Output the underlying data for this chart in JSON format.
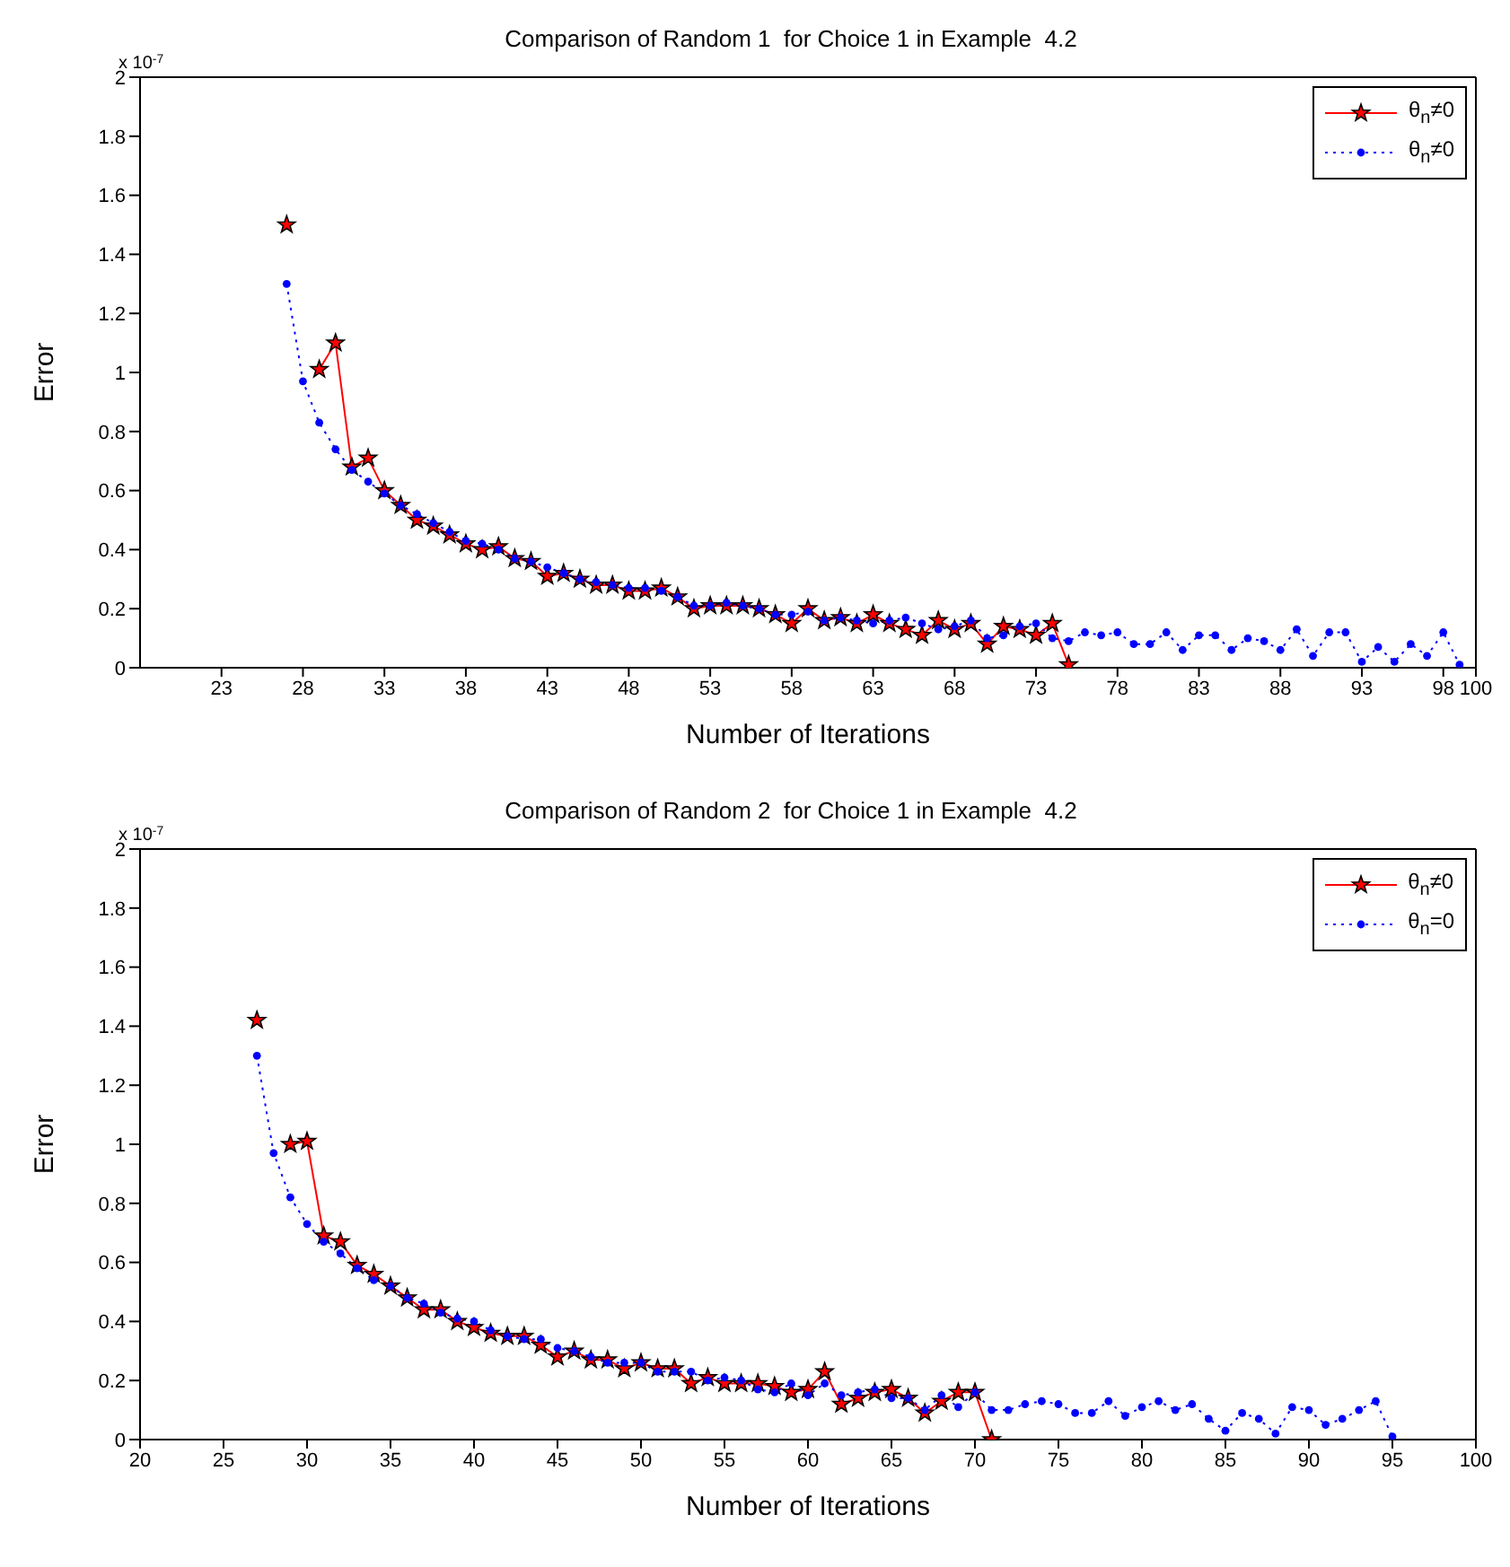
{
  "chart_data": [
    {
      "type": "line",
      "title": "Comparison of Random 1  for Choice 1 in Example  4.2",
      "xlabel": "Number of Iterations",
      "ylabel": "Error",
      "annotations": [
        "x 10$^{-7}$"
      ],
      "xlim": [
        18,
        100
      ],
      "xticks": [
        23,
        28,
        33,
        38,
        43,
        48,
        53,
        58,
        63,
        68,
        73,
        78,
        83,
        88,
        93,
        98,
        100
      ],
      "ylim": [
        0,
        2
      ],
      "yticks": [
        0,
        0.2,
        0.4,
        0.6,
        0.8,
        1,
        1.2,
        1.4,
        1.6,
        1.8,
        2
      ],
      "legend": "top right",
      "series": [
        {
          "name": "θ$_{n}$≠0",
          "color": "#ff0000",
          "marker": "star",
          "line_style": "solid",
          "x": [
            27,
            28,
            29,
            30,
            31,
            32,
            33,
            34,
            35,
            36,
            37,
            38,
            39,
            40,
            41,
            42,
            43,
            44,
            45,
            46,
            47,
            48,
            49,
            50,
            51,
            52,
            53,
            54,
            55,
            56,
            57,
            58,
            59,
            60,
            61,
            62,
            63,
            64,
            65,
            66,
            67,
            68,
            69,
            70,
            71,
            72,
            73,
            74,
            75
          ],
          "values": [
            1.5,
            null,
            1.01,
            1.1,
            0.68,
            0.71,
            0.6,
            0.55,
            0.5,
            0.48,
            0.45,
            0.42,
            0.4,
            0.41,
            0.37,
            0.36,
            0.31,
            0.32,
            0.3,
            0.28,
            0.28,
            0.26,
            0.26,
            0.27,
            0.24,
            0.2,
            0.21,
            0.21,
            0.21,
            0.2,
            0.18,
            0.15,
            0.2,
            0.16,
            0.17,
            0.15,
            0.18,
            0.15,
            0.13,
            0.11,
            0.16,
            0.13,
            0.15,
            0.08,
            0.14,
            0.13,
            0.11,
            0.15,
            0.01
          ]
        },
        {
          "name": "θ$_{n}$≠0",
          "color": "#0000ff",
          "marker": "circle",
          "line_style": "dotted",
          "x": [
            27,
            28,
            29,
            30,
            31,
            32,
            33,
            34,
            35,
            36,
            37,
            38,
            39,
            40,
            41,
            42,
            43,
            44,
            45,
            46,
            47,
            48,
            49,
            50,
            51,
            52,
            53,
            54,
            55,
            56,
            57,
            58,
            59,
            60,
            61,
            62,
            63,
            64,
            65,
            66,
            67,
            68,
            69,
            70,
            71,
            72,
            73,
            74,
            75,
            76,
            77,
            78,
            79,
            80,
            81,
            82,
            83,
            84,
            85,
            86,
            87,
            88,
            89,
            90,
            91,
            92,
            93,
            94,
            95,
            96,
            97,
            98,
            99
          ],
          "values": [
            1.3,
            0.97,
            0.83,
            0.74,
            0.67,
            0.63,
            0.59,
            0.55,
            0.52,
            0.49,
            0.46,
            0.43,
            0.42,
            0.4,
            0.37,
            0.36,
            0.34,
            0.32,
            0.3,
            0.29,
            0.28,
            0.27,
            0.27,
            0.26,
            0.24,
            0.21,
            0.21,
            0.22,
            0.21,
            0.2,
            0.18,
            0.18,
            0.19,
            0.16,
            0.17,
            0.16,
            0.15,
            0.16,
            0.17,
            0.15,
            0.13,
            0.14,
            0.16,
            0.1,
            0.11,
            0.14,
            0.15,
            0.1,
            0.09,
            0.12,
            0.11,
            0.12,
            0.08,
            0.08,
            0.12,
            0.06,
            0.11,
            0.11,
            0.06,
            0.1,
            0.09,
            0.06,
            0.13,
            0.04,
            0.12,
            0.12,
            0.02,
            0.07,
            0.02,
            0.08,
            0.04,
            0.12,
            0.01
          ]
        }
      ]
    },
    {
      "type": "line",
      "title": "Comparison of Random 2  for Choice 1 in Example  4.2",
      "xlabel": "Number of Iterations",
      "ylabel": "Error",
      "annotations": [
        "x 10$^{-7}$"
      ],
      "xlim": [
        20,
        100
      ],
      "xticks": [
        20,
        25,
        30,
        35,
        40,
        45,
        50,
        55,
        60,
        65,
        70,
        75,
        80,
        85,
        90,
        95,
        100
      ],
      "ylim": [
        0,
        2
      ],
      "yticks": [
        0,
        0.2,
        0.4,
        0.6,
        0.8,
        1,
        1.2,
        1.4,
        1.6,
        1.8,
        2
      ],
      "legend": "top right",
      "series": [
        {
          "name": "θ$_{n}$≠0",
          "color": "#ff0000",
          "marker": "star",
          "line_style": "solid",
          "x": [
            27,
            28,
            29,
            30,
            31,
            32,
            33,
            34,
            35,
            36,
            37,
            38,
            39,
            40,
            41,
            42,
            43,
            44,
            45,
            46,
            47,
            48,
            49,
            50,
            51,
            52,
            53,
            54,
            55,
            56,
            57,
            58,
            59,
            60,
            61,
            62,
            63,
            64,
            65,
            66,
            67,
            68,
            69,
            70,
            71
          ],
          "values": [
            1.42,
            null,
            1.0,
            1.01,
            0.69,
            0.67,
            0.59,
            0.56,
            0.52,
            0.48,
            0.44,
            0.44,
            0.4,
            0.38,
            0.36,
            0.35,
            0.35,
            0.32,
            0.28,
            0.3,
            0.27,
            0.27,
            0.24,
            0.26,
            0.24,
            0.24,
            0.19,
            0.21,
            0.19,
            0.19,
            0.19,
            0.18,
            0.16,
            0.17,
            0.23,
            0.12,
            0.14,
            0.16,
            0.17,
            0.14,
            0.09,
            0.13,
            0.16,
            0.16,
            0
          ]
        },
        {
          "name": "θ$_{n}$=0",
          "color": "#0000ff",
          "marker": "circle",
          "line_style": "dotted",
          "x": [
            27,
            28,
            29,
            30,
            31,
            32,
            33,
            34,
            35,
            36,
            37,
            38,
            39,
            40,
            41,
            42,
            43,
            44,
            45,
            46,
            47,
            48,
            49,
            50,
            51,
            52,
            53,
            54,
            55,
            56,
            57,
            58,
            59,
            60,
            61,
            62,
            63,
            64,
            65,
            66,
            67,
            68,
            69,
            70,
            71,
            72,
            73,
            74,
            75,
            76,
            77,
            78,
            79,
            80,
            81,
            82,
            83,
            84,
            85,
            86,
            87,
            88,
            89,
            90,
            91,
            92,
            93,
            94,
            95
          ],
          "values": [
            1.3,
            0.97,
            0.82,
            0.73,
            0.67,
            0.63,
            0.58,
            0.54,
            0.52,
            0.48,
            0.46,
            0.43,
            0.41,
            0.4,
            0.37,
            0.35,
            0.34,
            0.34,
            0.31,
            0.3,
            0.28,
            0.26,
            0.26,
            0.26,
            0.23,
            0.23,
            0.23,
            0.2,
            0.21,
            0.2,
            0.17,
            0.16,
            0.19,
            0.15,
            0.19,
            0.15,
            0.16,
            0.17,
            0.14,
            0.14,
            0.1,
            0.15,
            0.11,
            0.16,
            0.1,
            0.1,
            0.12,
            0.13,
            0.12,
            0.09,
            0.09,
            0.13,
            0.08,
            0.11,
            0.13,
            0.1,
            0.12,
            0.07,
            0.03,
            0.09,
            0.07,
            0.02,
            0.11,
            0.1,
            0.05,
            0.07,
            0.1,
            0.13,
            0.01
          ]
        }
      ]
    }
  ]
}
